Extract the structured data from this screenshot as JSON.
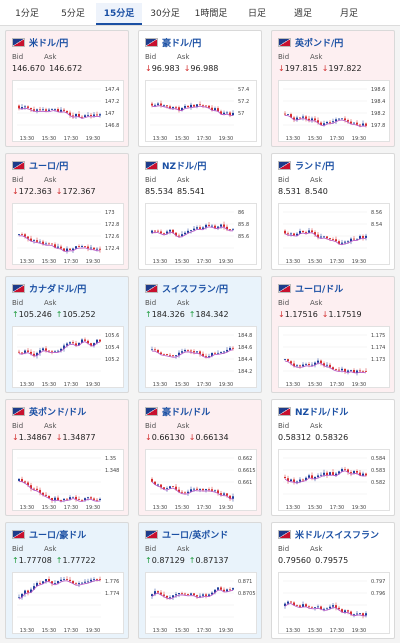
{
  "tabs": [
    {
      "label": "1分足",
      "active": false
    },
    {
      "label": "5分足",
      "active": false
    },
    {
      "label": "15分足",
      "active": true
    },
    {
      "label": "30分足",
      "active": false
    },
    {
      "label": "1時間足",
      "active": false
    },
    {
      "label": "日足",
      "active": false
    },
    {
      "label": "週足",
      "active": false
    },
    {
      "label": "月足",
      "active": false
    }
  ],
  "bid_label": "Bid",
  "ask_label": "Ask",
  "colors": {
    "up_candle": "#1f3f9b",
    "down_candle": "#d62f2f",
    "ma_line": "#b24fc2"
  },
  "cards": [
    {
      "name": "米ドル/円",
      "bid": "146.670",
      "ask": "146.672",
      "dir": "",
      "bg": "pink",
      "ticks": [
        "147.4",
        "147.2",
        "147",
        "146.8"
      ],
      "xlabels": [
        "13:30",
        "15:30",
        "17:30",
        "19:30"
      ]
    },
    {
      "name": "豪ドル/円",
      "bid": "96.983",
      "ask": "96.988",
      "dir": "down",
      "bg": "white",
      "ticks": [
        "57.4",
        "57.2",
        "57",
        ""
      ],
      "xlabels": [
        "13:30",
        "15:30",
        "17:30",
        "19:30"
      ]
    },
    {
      "name": "英ポンド/円",
      "bid": "197.815",
      "ask": "197.822",
      "dir": "down",
      "bg": "pink",
      "ticks": [
        "198.6",
        "198.4",
        "198.2",
        "197.8"
      ],
      "xlabels": [
        "13:30",
        "15:30",
        "17:30",
        "19:30"
      ]
    },
    {
      "name": "ユーロ/円",
      "bid": "172.363",
      "ask": "172.367",
      "dir": "down",
      "bg": "pink",
      "ticks": [
        "173",
        "172.8",
        "172.6",
        "172.4"
      ],
      "xlabels": [
        "13:30",
        "15:30",
        "17:30",
        "19:30"
      ]
    },
    {
      "name": "NZドル/円",
      "bid": "85.534",
      "ask": "85.541",
      "dir": "",
      "bg": "white",
      "ticks": [
        "86",
        "85.8",
        "85.6",
        ""
      ],
      "xlabels": [
        "13:30",
        "15:30",
        "17:30",
        "19:30"
      ]
    },
    {
      "name": "ランド/円",
      "bid": "8.531",
      "ask": "8.540",
      "dir": "",
      "bg": "white",
      "ticks": [
        "8.56",
        "8.54",
        "",
        ""
      ],
      "xlabels": [
        "13:30",
        "15:30",
        "17:30",
        "19:30"
      ]
    },
    {
      "name": "カナダドル/円",
      "bid": "105.246",
      "ask": "105.252",
      "dir": "up",
      "bg": "blue",
      "ticks": [
        "105.6",
        "105.4",
        "105.2",
        ""
      ],
      "xlabels": [
        "13:30",
        "15:30",
        "17:30",
        "19:30"
      ]
    },
    {
      "name": "スイスフラン/円",
      "bid": "184.326",
      "ask": "184.342",
      "dir": "up",
      "bg": "blue",
      "ticks": [
        "184.8",
        "184.6",
        "184.4",
        "184.2"
      ],
      "xlabels": [
        "13:30",
        "15:30",
        "17:30",
        "19:30"
      ]
    },
    {
      "name": "ユーロ/ドル",
      "bid": "1.17516",
      "ask": "1.17519",
      "dir": "down",
      "bg": "pink",
      "ticks": [
        "1.175",
        "1.174",
        "1.173",
        ""
      ],
      "xlabels": [
        "13:30",
        "15:30",
        "17:30",
        "19:30"
      ]
    },
    {
      "name": "英ポンド/ドル",
      "bid": "1.34867",
      "ask": "1.34877",
      "dir": "down",
      "bg": "pink",
      "ticks": [
        "1.35",
        "1.348",
        "",
        ""
      ],
      "xlabels": [
        "13:30",
        "15:30",
        "17:30",
        "19:30"
      ]
    },
    {
      "name": "豪ドル/ドル",
      "bid": "0.66130",
      "ask": "0.66134",
      "dir": "down",
      "bg": "pink",
      "ticks": [
        "0.662",
        "0.6615",
        "0.661",
        ""
      ],
      "xlabels": [
        "13:30",
        "15:30",
        "17:30",
        "19:30"
      ]
    },
    {
      "name": "NZドル/ドル",
      "bid": "0.58312",
      "ask": "0.58326",
      "dir": "",
      "bg": "white",
      "ticks": [
        "0.584",
        "0.583",
        "0.582",
        ""
      ],
      "xlabels": [
        "13:30",
        "15:30",
        "17:30",
        "19:30"
      ]
    },
    {
      "name": "ユーロ/豪ドル",
      "bid": "1.77708",
      "ask": "1.77722",
      "dir": "up",
      "bg": "blue",
      "ticks": [
        "1.776",
        "1.774",
        "",
        ""
      ],
      "xlabels": [
        "13:30",
        "15:30",
        "17:30",
        "19:30"
      ]
    },
    {
      "name": "ユーロ/英ポンド",
      "bid": "0.87129",
      "ask": "0.87137",
      "dir": "up",
      "bg": "blue",
      "ticks": [
        "0.871",
        "0.8705",
        "",
        ""
      ],
      "xlabels": [
        "13:30",
        "15:30",
        "17:30",
        "19:30"
      ]
    },
    {
      "name": "米ドル/スイスフラン",
      "bid": "0.79560",
      "ask": "0.79575",
      "dir": "",
      "bg": "white",
      "ticks": [
        "0.797",
        "0.796",
        "",
        ""
      ],
      "xlabels": [
        "13:30",
        "15:30",
        "17:30",
        "19:30"
      ]
    }
  ]
}
